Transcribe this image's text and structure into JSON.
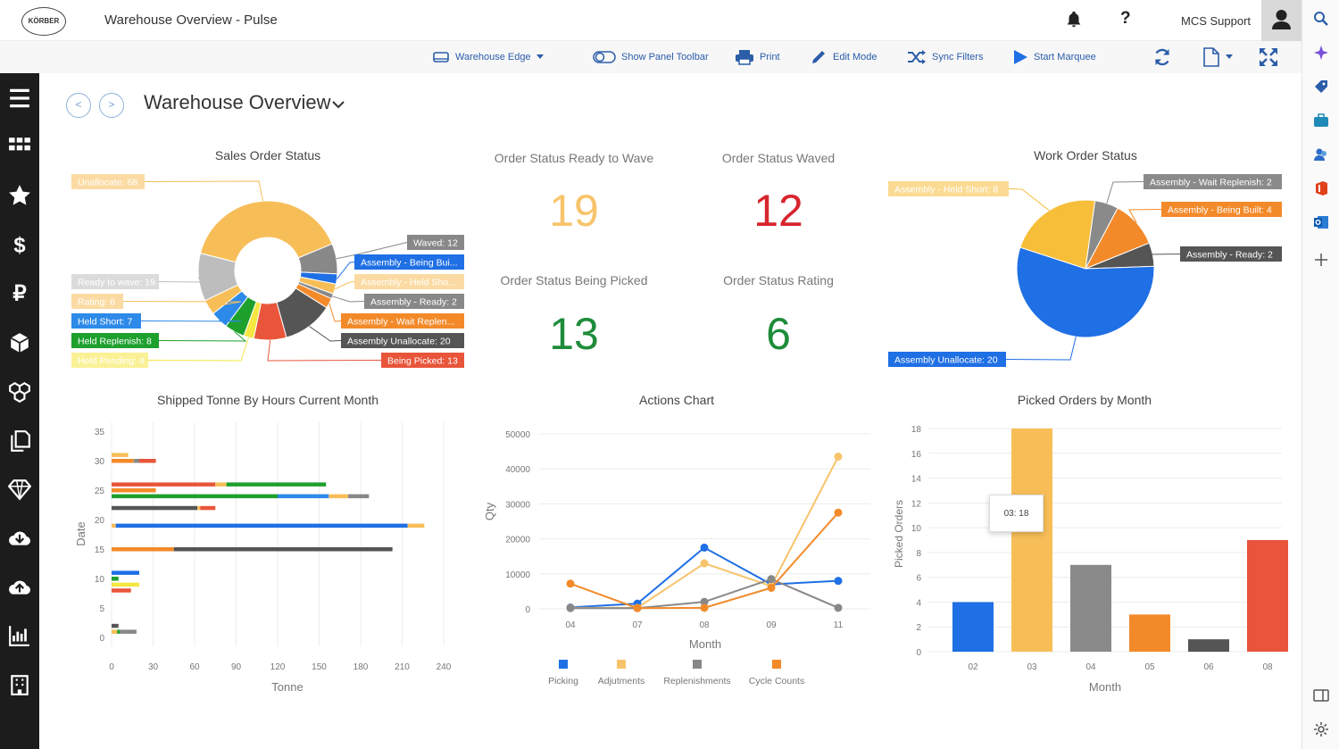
{
  "app": {
    "title": "Warehouse Overview - Pulse",
    "logo_text": "KÖRBER",
    "user": "MCS Support",
    "help": "?"
  },
  "toolbar": {
    "warehouse": "Warehouse Edge",
    "show_panel": "Show Panel Toolbar",
    "print": "Print",
    "edit": "Edit Mode",
    "sync": "Sync Filters",
    "marquee": "Start Marquee"
  },
  "page": {
    "title": "Warehouse Overview"
  },
  "kpis": [
    {
      "label": "Order Status Ready to Wave",
      "value": "19",
      "color": "#f7c46c"
    },
    {
      "label": "Order Status Waved",
      "value": "12",
      "color": "#d7262e"
    },
    {
      "label": "Order Status Being Picked",
      "value": "13",
      "color": "#1e8c3a"
    },
    {
      "label": "Order Status Rating",
      "value": "6",
      "color": "#1e8c3a"
    }
  ],
  "sidebar_icons": [
    "menu-icon",
    "grid-icon",
    "star-icon",
    "dollar-icon",
    "ruble-icon",
    "box-icon",
    "boxes-icon",
    "documents-icon",
    "diamond-icon",
    "cloud-download-icon",
    "cloud-upload-icon",
    "bar-chart-icon",
    "building-icon"
  ],
  "right_icons": [
    "search-icon",
    "sparkle-icon",
    "tag-icon",
    "briefcase-icon",
    "people-icon",
    "office-icon",
    "outlook-icon",
    "plus-icon",
    "panel-icon",
    "settings-icon"
  ],
  "chart_data": [
    {
      "type": "pie",
      "title": "Sales Order Status",
      "slices": [
        {
          "label": "Unallocate: 68",
          "value": 68,
          "color": "#f7be58"
        },
        {
          "label": "Waved: 12",
          "value": 12,
          "color": "#888888"
        },
        {
          "label": "Assembly - Being Bui...",
          "value": 4,
          "color": "#1f6fe5"
        },
        {
          "label": "Assembly - Held Sho...",
          "value": 4,
          "color": "#f7be58"
        },
        {
          "label": "Assembly - Ready: 2",
          "value": 2,
          "color": "#888888"
        },
        {
          "label": "Assembly - Wait Replen...",
          "value": 4,
          "color": "#f38a2a"
        },
        {
          "label": "Assembly Unallocate: 20",
          "value": 20,
          "color": "#555555"
        },
        {
          "label": "Being Picked: 13",
          "value": 13,
          "color": "#e8553a"
        },
        {
          "label": "Held Pending: 4",
          "value": 4,
          "color": "#f5e642"
        },
        {
          "label": "Held Replenish: 8",
          "value": 8,
          "color": "#1ea02d"
        },
        {
          "label": "Held Short: 7",
          "value": 7,
          "color": "#2d8ae8"
        },
        {
          "label": "Rating: 6",
          "value": 6,
          "color": "#f7be58"
        },
        {
          "label": "Ready to wave: 19",
          "value": 19,
          "color": "#bdbdbd"
        }
      ]
    },
    {
      "type": "pie",
      "title": "Work Order Status",
      "slices": [
        {
          "label": "Assembly - Held Short: 8",
          "value": 8,
          "color": "#f7be3a"
        },
        {
          "label": "Assembly - Wait Replenish: 2",
          "value": 2,
          "color": "#8a8a8a"
        },
        {
          "label": "Assembly - Being Built: 4",
          "value": 4,
          "color": "#f38a2a"
        },
        {
          "label": "Assembly - Ready: 2",
          "value": 2,
          "color": "#555555"
        },
        {
          "label": "Assembly Unallocate: 20",
          "value": 20,
          "color": "#1f6fe5"
        }
      ]
    },
    {
      "type": "bar",
      "title": "Shipped Tonne By Hours Current Month",
      "xlabel": "Tonne",
      "ylabel": "Date",
      "x_ticks": [
        0,
        30,
        60,
        90,
        120,
        150,
        180,
        210,
        240
      ],
      "y_ticks": [
        0,
        5,
        10,
        15,
        20,
        25,
        30,
        35
      ],
      "xlim": [
        0,
        240
      ],
      "ylim": [
        0,
        35
      ],
      "bars": [
        {
          "y": 31,
          "segments": [
            {
              "v": 12,
              "c": "#f7be58"
            }
          ]
        },
        {
          "y": 30,
          "segments": [
            {
              "v": 16,
              "c": "#f38a2a"
            },
            {
              "v": 4,
              "c": "#888888"
            },
            {
              "v": 12,
              "c": "#e8553a"
            }
          ]
        },
        {
          "y": 26,
          "segments": [
            {
              "v": 75,
              "c": "#e8553a"
            },
            {
              "v": 8,
              "c": "#f7be58"
            },
            {
              "v": 72,
              "c": "#1ea02d"
            }
          ]
        },
        {
          "y": 25,
          "segments": [
            {
              "v": 32,
              "c": "#f38a2a"
            }
          ]
        },
        {
          "y": 24,
          "segments": [
            {
              "v": 120,
              "c": "#1ea02d"
            },
            {
              "v": 37,
              "c": "#2d8ae8"
            },
            {
              "v": 14,
              "c": "#f7be58"
            },
            {
              "v": 15,
              "c": "#888888"
            }
          ]
        },
        {
          "y": 22,
          "segments": [
            {
              "v": 62,
              "c": "#555555"
            },
            {
              "v": 2,
              "c": "#f7be58"
            },
            {
              "v": 11,
              "c": "#e8553a"
            }
          ]
        },
        {
          "y": 19,
          "segments": [
            {
              "v": 3,
              "c": "#f7be58"
            },
            {
              "v": 211,
              "c": "#1f6fe5"
            },
            {
              "v": 12,
              "c": "#f7be58"
            }
          ]
        },
        {
          "y": 15,
          "segments": [
            {
              "v": 45,
              "c": "#f38a2a"
            },
            {
              "v": 158,
              "c": "#555555"
            }
          ]
        },
        {
          "y": 11,
          "segments": [
            {
              "v": 20,
              "c": "#1f6fe5"
            }
          ]
        },
        {
          "y": 10,
          "segments": [
            {
              "v": 5,
              "c": "#1ea02d"
            }
          ]
        },
        {
          "y": 9,
          "segments": [
            {
              "v": 20,
              "c": "#f5e642"
            }
          ]
        },
        {
          "y": 8,
          "segments": [
            {
              "v": 14,
              "c": "#e8553a"
            }
          ]
        },
        {
          "y": 2,
          "segments": [
            {
              "v": 5,
              "c": "#555555"
            }
          ]
        },
        {
          "y": 1,
          "segments": [
            {
              "v": 4,
              "c": "#f7be58"
            },
            {
              "v": 2,
              "c": "#1ea02d"
            },
            {
              "v": 12,
              "c": "#888888"
            }
          ]
        }
      ]
    },
    {
      "type": "line",
      "title": "Actions Chart",
      "xlabel": "Month",
      "ylabel": "Qty",
      "categories": [
        "04",
        "07",
        "08",
        "09",
        "11"
      ],
      "y_ticks": [
        0,
        10000,
        20000,
        30000,
        40000,
        50000
      ],
      "ylim": [
        0,
        50000
      ],
      "series": [
        {
          "name": "Picking",
          "color": "#1f6fe5",
          "values": [
            400,
            1500,
            17500,
            7000,
            8000
          ]
        },
        {
          "name": "Adjutments",
          "color": "#f7c46c",
          "values": [
            300,
            300,
            13000,
            6500,
            43500
          ]
        },
        {
          "name": "Replenishments",
          "color": "#888888",
          "values": [
            200,
            200,
            2000,
            8500,
            300
          ]
        },
        {
          "name": "Cycle Counts",
          "color": "#f38a2a",
          "values": [
            7200,
            200,
            300,
            6000,
            27500
          ]
        }
      ]
    },
    {
      "type": "bar",
      "title": "Picked Orders by Month",
      "xlabel": "Month",
      "ylabel": "Picked Orders",
      "categories": [
        "02",
        "03",
        "04",
        "05",
        "06",
        "08"
      ],
      "values": [
        4,
        18,
        7,
        3,
        1,
        9
      ],
      "colors": [
        "#1f6fe5",
        "#f7be58",
        "#8a8a8a",
        "#f38a2a",
        "#555555",
        "#e8553a"
      ],
      "y_ticks": [
        0,
        2,
        4,
        6,
        8,
        10,
        12,
        14,
        16,
        18
      ],
      "ylim": [
        0,
        18
      ],
      "tooltip": "03: 18"
    }
  ]
}
